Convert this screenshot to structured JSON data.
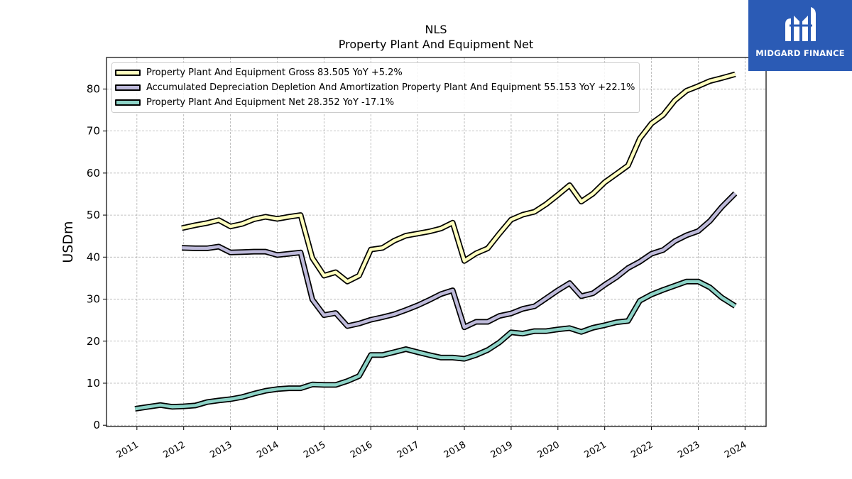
{
  "chart_data": {
    "type": "line",
    "title": "NLS",
    "subtitle": "Property Plant And Equipment Net",
    "ylabel": "USDm",
    "xlabel": "",
    "xlim": [
      2010.35,
      2024.45
    ],
    "ylim": [
      -0.3,
      87.5
    ],
    "x_ticks": [
      "2011",
      "2012",
      "2013",
      "2014",
      "2015",
      "2016",
      "2017",
      "2018",
      "2019",
      "2020",
      "2021",
      "2022",
      "2023",
      "2024"
    ],
    "y_ticks": [
      0,
      10,
      20,
      30,
      40,
      50,
      60,
      70,
      80
    ],
    "grid": true,
    "legend_position": "top-left",
    "series": [
      {
        "name": "Property Plant And Equipment Gross",
        "legend_label": "Property Plant And Equipment Gross  83.505 YoY +5.2%",
        "color": "#ffffbf",
        "points": [
          [
            2011.96,
            46.9
          ],
          [
            2012.25,
            47.6
          ],
          [
            2012.5,
            48.1
          ],
          [
            2012.75,
            48.8
          ],
          [
            2013.0,
            47.3
          ],
          [
            2013.25,
            47.9
          ],
          [
            2013.5,
            49.0
          ],
          [
            2013.75,
            49.6
          ],
          [
            2014.0,
            49.1
          ],
          [
            2014.25,
            49.6
          ],
          [
            2014.5,
            50.0
          ],
          [
            2014.75,
            39.8
          ],
          [
            2015.0,
            35.6
          ],
          [
            2015.25,
            36.4
          ],
          [
            2015.5,
            34.2
          ],
          [
            2015.75,
            35.6
          ],
          [
            2016.0,
            41.8
          ],
          [
            2016.25,
            42.2
          ],
          [
            2016.5,
            43.9
          ],
          [
            2016.75,
            45.1
          ],
          [
            2017.0,
            45.6
          ],
          [
            2017.25,
            46.1
          ],
          [
            2017.5,
            46.8
          ],
          [
            2017.75,
            48.2
          ],
          [
            2018.0,
            39.1
          ],
          [
            2018.25,
            40.9
          ],
          [
            2018.5,
            42.1
          ],
          [
            2018.75,
            45.6
          ],
          [
            2019.0,
            48.9
          ],
          [
            2019.25,
            50.1
          ],
          [
            2019.5,
            50.8
          ],
          [
            2019.75,
            52.6
          ],
          [
            2020.0,
            54.8
          ],
          [
            2020.25,
            57.1
          ],
          [
            2020.5,
            53.2
          ],
          [
            2020.75,
            55.1
          ],
          [
            2021.0,
            57.8
          ],
          [
            2021.25,
            59.8
          ],
          [
            2021.5,
            61.8
          ],
          [
            2021.75,
            68.2
          ],
          [
            2022.0,
            71.8
          ],
          [
            2022.25,
            73.8
          ],
          [
            2022.5,
            77.3
          ],
          [
            2022.75,
            79.6
          ],
          [
            2023.0,
            80.7
          ],
          [
            2023.25,
            81.9
          ],
          [
            2023.5,
            82.6
          ],
          [
            2023.79,
            83.5
          ]
        ]
      },
      {
        "name": "Accumulated Depreciation Depletion And Amortization Property Plant And Equipment",
        "legend_label": "Accumulated Depreciation Depletion And Amortization Property Plant And Equipment  55.153 YoY +22.1%",
        "color": "#bebada",
        "points": [
          [
            2011.96,
            42.2
          ],
          [
            2012.25,
            42.1
          ],
          [
            2012.5,
            42.1
          ],
          [
            2012.75,
            42.5
          ],
          [
            2013.0,
            41.1
          ],
          [
            2013.25,
            41.2
          ],
          [
            2013.5,
            41.3
          ],
          [
            2013.75,
            41.3
          ],
          [
            2014.0,
            40.5
          ],
          [
            2014.25,
            40.8
          ],
          [
            2014.5,
            41.1
          ],
          [
            2014.75,
            29.9
          ],
          [
            2015.0,
            26.2
          ],
          [
            2015.25,
            26.7
          ],
          [
            2015.5,
            23.6
          ],
          [
            2015.75,
            24.2
          ],
          [
            2016.0,
            25.1
          ],
          [
            2016.25,
            25.7
          ],
          [
            2016.5,
            26.4
          ],
          [
            2016.75,
            27.4
          ],
          [
            2017.0,
            28.5
          ],
          [
            2017.25,
            29.8
          ],
          [
            2017.5,
            31.2
          ],
          [
            2017.75,
            32.1
          ],
          [
            2018.0,
            23.3
          ],
          [
            2018.25,
            24.6
          ],
          [
            2018.5,
            24.6
          ],
          [
            2018.75,
            26.0
          ],
          [
            2019.0,
            26.6
          ],
          [
            2019.25,
            27.7
          ],
          [
            2019.5,
            28.3
          ],
          [
            2019.75,
            30.2
          ],
          [
            2020.0,
            32.1
          ],
          [
            2020.25,
            33.8
          ],
          [
            2020.5,
            30.7
          ],
          [
            2020.75,
            31.4
          ],
          [
            2021.0,
            33.4
          ],
          [
            2021.25,
            35.2
          ],
          [
            2021.5,
            37.4
          ],
          [
            2021.75,
            38.9
          ],
          [
            2022.0,
            40.8
          ],
          [
            2022.25,
            41.7
          ],
          [
            2022.5,
            43.8
          ],
          [
            2022.75,
            45.2
          ],
          [
            2023.0,
            46.2
          ],
          [
            2023.25,
            48.6
          ],
          [
            2023.5,
            51.9
          ],
          [
            2023.79,
            55.15
          ]
        ]
      },
      {
        "name": "Property Plant And Equipment Net",
        "legend_label": "Property Plant And Equipment Net  28.352 YoY -17.1%",
        "color": "#8dd3c7",
        "points": [
          [
            2010.96,
            3.9
          ],
          [
            2011.25,
            4.4
          ],
          [
            2011.5,
            4.8
          ],
          [
            2011.75,
            4.4
          ],
          [
            2012.0,
            4.5
          ],
          [
            2012.25,
            4.7
          ],
          [
            2012.5,
            5.5
          ],
          [
            2012.75,
            5.9
          ],
          [
            2013.0,
            6.2
          ],
          [
            2013.25,
            6.7
          ],
          [
            2013.5,
            7.5
          ],
          [
            2013.75,
            8.2
          ],
          [
            2014.0,
            8.6
          ],
          [
            2014.25,
            8.8
          ],
          [
            2014.5,
            8.8
          ],
          [
            2014.75,
            9.7
          ],
          [
            2015.0,
            9.6
          ],
          [
            2015.25,
            9.6
          ],
          [
            2015.5,
            10.5
          ],
          [
            2015.75,
            11.7
          ],
          [
            2016.0,
            16.7
          ],
          [
            2016.25,
            16.7
          ],
          [
            2016.5,
            17.4
          ],
          [
            2016.75,
            18.1
          ],
          [
            2017.0,
            17.4
          ],
          [
            2017.25,
            16.7
          ],
          [
            2017.5,
            16.1
          ],
          [
            2017.75,
            16.1
          ],
          [
            2018.0,
            15.8
          ],
          [
            2018.25,
            16.7
          ],
          [
            2018.5,
            17.9
          ],
          [
            2018.75,
            19.7
          ],
          [
            2019.0,
            22.1
          ],
          [
            2019.25,
            21.8
          ],
          [
            2019.5,
            22.4
          ],
          [
            2019.75,
            22.4
          ],
          [
            2020.0,
            22.8
          ],
          [
            2020.25,
            23.1
          ],
          [
            2020.5,
            22.2
          ],
          [
            2020.75,
            23.2
          ],
          [
            2021.0,
            23.8
          ],
          [
            2021.25,
            24.5
          ],
          [
            2021.5,
            24.8
          ],
          [
            2021.75,
            29.6
          ],
          [
            2022.0,
            31.1
          ],
          [
            2022.25,
            32.2
          ],
          [
            2022.5,
            33.2
          ],
          [
            2022.75,
            34.2
          ],
          [
            2023.0,
            34.2
          ],
          [
            2023.25,
            32.8
          ],
          [
            2023.5,
            30.4
          ],
          [
            2023.79,
            28.35
          ]
        ]
      }
    ]
  },
  "branding": {
    "logo_text": "MIDGARD FINANCE",
    "logo_color": "#2b5bb5"
  }
}
